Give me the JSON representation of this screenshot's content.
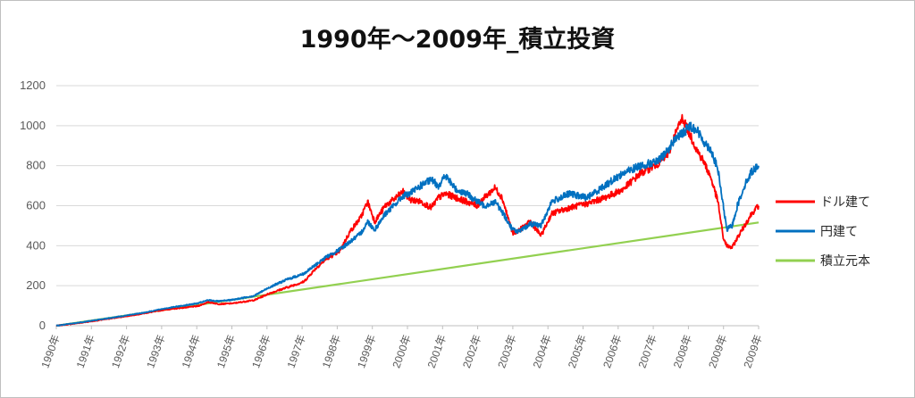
{
  "chart_data": {
    "type": "line",
    "title": "1990年～2009年_積立投資",
    "xlabel": "",
    "ylabel": "",
    "ylim": [
      0,
      1200
    ],
    "y_ticks": [
      0,
      200,
      400,
      600,
      800,
      1000,
      1200
    ],
    "x_categories": [
      "1990年",
      "1991年",
      "1992年",
      "1993年",
      "1994年",
      "1995年",
      "1996年",
      "1997年",
      "1998年",
      "1999年",
      "2000年",
      "2001年",
      "2002年",
      "2003年",
      "2004年",
      "2005年",
      "2006年",
      "2007年",
      "2008年",
      "2009年",
      "2009年"
    ],
    "grid": true,
    "legend": "right",
    "series": [
      {
        "name": "ドル建て",
        "color": "#ff0000",
        "x": [
          1990.0,
          1990.5,
          1991.0,
          1991.5,
          1992.0,
          1992.5,
          1993.0,
          1993.5,
          1994.0,
          1994.3,
          1994.6,
          1995.0,
          1995.3,
          1995.6,
          1996.0,
          1996.5,
          1997.0,
          1997.3,
          1997.6,
          1998.0,
          1998.3,
          1998.6,
          1998.8,
          1999.0,
          1999.3,
          1999.6,
          1999.8,
          2000.0,
          2000.3,
          2000.6,
          2000.8,
          2001.0,
          2001.3,
          2001.6,
          2001.9,
          2002.1,
          2002.4,
          2002.6,
          2002.9,
          2003.1,
          2003.4,
          2003.7,
          2004.0,
          2004.5,
          2005.0,
          2005.5,
          2006.0,
          2006.5,
          2007.0,
          2007.3,
          2007.5,
          2007.7,
          2007.9,
          2008.1,
          2008.3,
          2008.5,
          2008.7,
          2008.85,
          2008.95,
          2009.1,
          2009.25,
          2009.45,
          2009.65,
          2009.85
        ],
        "values": [
          0,
          10,
          22,
          35,
          48,
          62,
          78,
          88,
          98,
          118,
          108,
          112,
          120,
          128,
          160,
          190,
          220,
          280,
          330,
          370,
          470,
          540,
          620,
          520,
          600,
          640,
          670,
          630,
          620,
          590,
          640,
          660,
          640,
          620,
          600,
          640,
          690,
          640,
          460,
          480,
          520,
          450,
          560,
          590,
          610,
          640,
          680,
          760,
          810,
          860,
          960,
          1040,
          960,
          880,
          820,
          740,
          620,
          440,
          400,
          390,
          440,
          500,
          560,
          600
        ]
      },
      {
        "name": "円建て",
        "color": "#0070c0",
        "x": [
          1990.0,
          1990.5,
          1991.0,
          1991.5,
          1992.0,
          1992.5,
          1993.0,
          1993.5,
          1994.0,
          1994.3,
          1994.6,
          1995.0,
          1995.3,
          1995.6,
          1996.0,
          1996.5,
          1997.0,
          1997.3,
          1997.6,
          1998.0,
          1998.3,
          1998.6,
          1998.8,
          1999.0,
          1999.3,
          1999.6,
          1999.8,
          2000.0,
          2000.3,
          2000.6,
          2000.8,
          2001.0,
          2001.3,
          2001.6,
          2001.9,
          2002.1,
          2002.4,
          2002.6,
          2002.9,
          2003.1,
          2003.4,
          2003.7,
          2004.0,
          2004.5,
          2005.0,
          2005.5,
          2006.0,
          2006.5,
          2007.0,
          2007.3,
          2007.5,
          2007.7,
          2007.9,
          2008.1,
          2008.3,
          2008.5,
          2008.7,
          2008.85,
          2008.95,
          2009.1,
          2009.25,
          2009.45,
          2009.65,
          2009.85
        ],
        "values": [
          0,
          12,
          25,
          38,
          52,
          66,
          84,
          98,
          112,
          128,
          122,
          130,
          140,
          150,
          190,
          230,
          260,
          300,
          340,
          380,
          420,
          460,
          520,
          480,
          560,
          610,
          650,
          660,
          700,
          730,
          700,
          750,
          680,
          660,
          620,
          600,
          620,
          570,
          480,
          470,
          510,
          500,
          620,
          660,
          640,
          700,
          760,
          800,
          820,
          880,
          940,
          960,
          1000,
          980,
          920,
          880,
          780,
          600,
          480,
          500,
          600,
          700,
          770,
          800
        ]
      },
      {
        "name": "積立元本",
        "color": "#92d050",
        "x": [
          1990.0,
          2009.85
        ],
        "values": [
          0,
          516
        ]
      }
    ]
  }
}
